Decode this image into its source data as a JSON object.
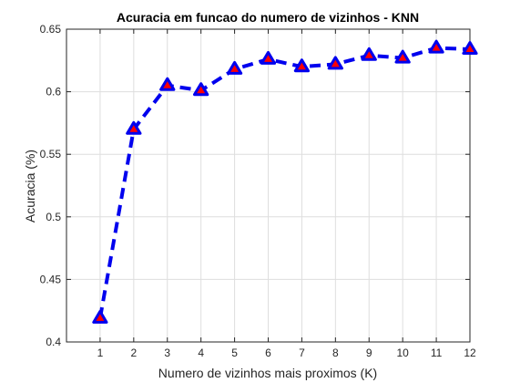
{
  "chart_data": {
    "type": "line",
    "title": "Acuracia em funcao do numero de vizinhos - KNN",
    "xlabel": "Numero de vizinhos mais proximos (K)",
    "ylabel": "Acuracia (%)",
    "xlim": [
      0,
      12
    ],
    "ylim": [
      0.4,
      0.65
    ],
    "xticks": [
      1,
      2,
      3,
      4,
      5,
      6,
      7,
      8,
      9,
      10,
      11,
      12
    ],
    "xtick_labels": [
      "1",
      "2",
      "3",
      "4",
      "5",
      "6",
      "7",
      "8",
      "9",
      "10",
      "11",
      "12"
    ],
    "yticks": [
      0.4,
      0.45,
      0.5,
      0.55,
      0.6,
      0.65
    ],
    "ytick_labels": [
      "0.4",
      "0.45",
      "0.5",
      "0.55",
      "0.6",
      "0.65"
    ],
    "grid": true,
    "legend": "none",
    "series": [
      {
        "x": [
          1,
          2,
          3,
          4,
          5,
          6,
          7,
          8,
          9,
          10,
          11,
          12
        ],
        "values": [
          0.419,
          0.57,
          0.605,
          0.601,
          0.618,
          0.626,
          0.62,
          0.622,
          0.629,
          0.627,
          0.635,
          0.634
        ],
        "line_style": "dashed",
        "line_color": "#0000ee",
        "marker": "triangle",
        "marker_edge_color": "#0000ee",
        "marker_face_color": "#ff0000"
      }
    ]
  }
}
